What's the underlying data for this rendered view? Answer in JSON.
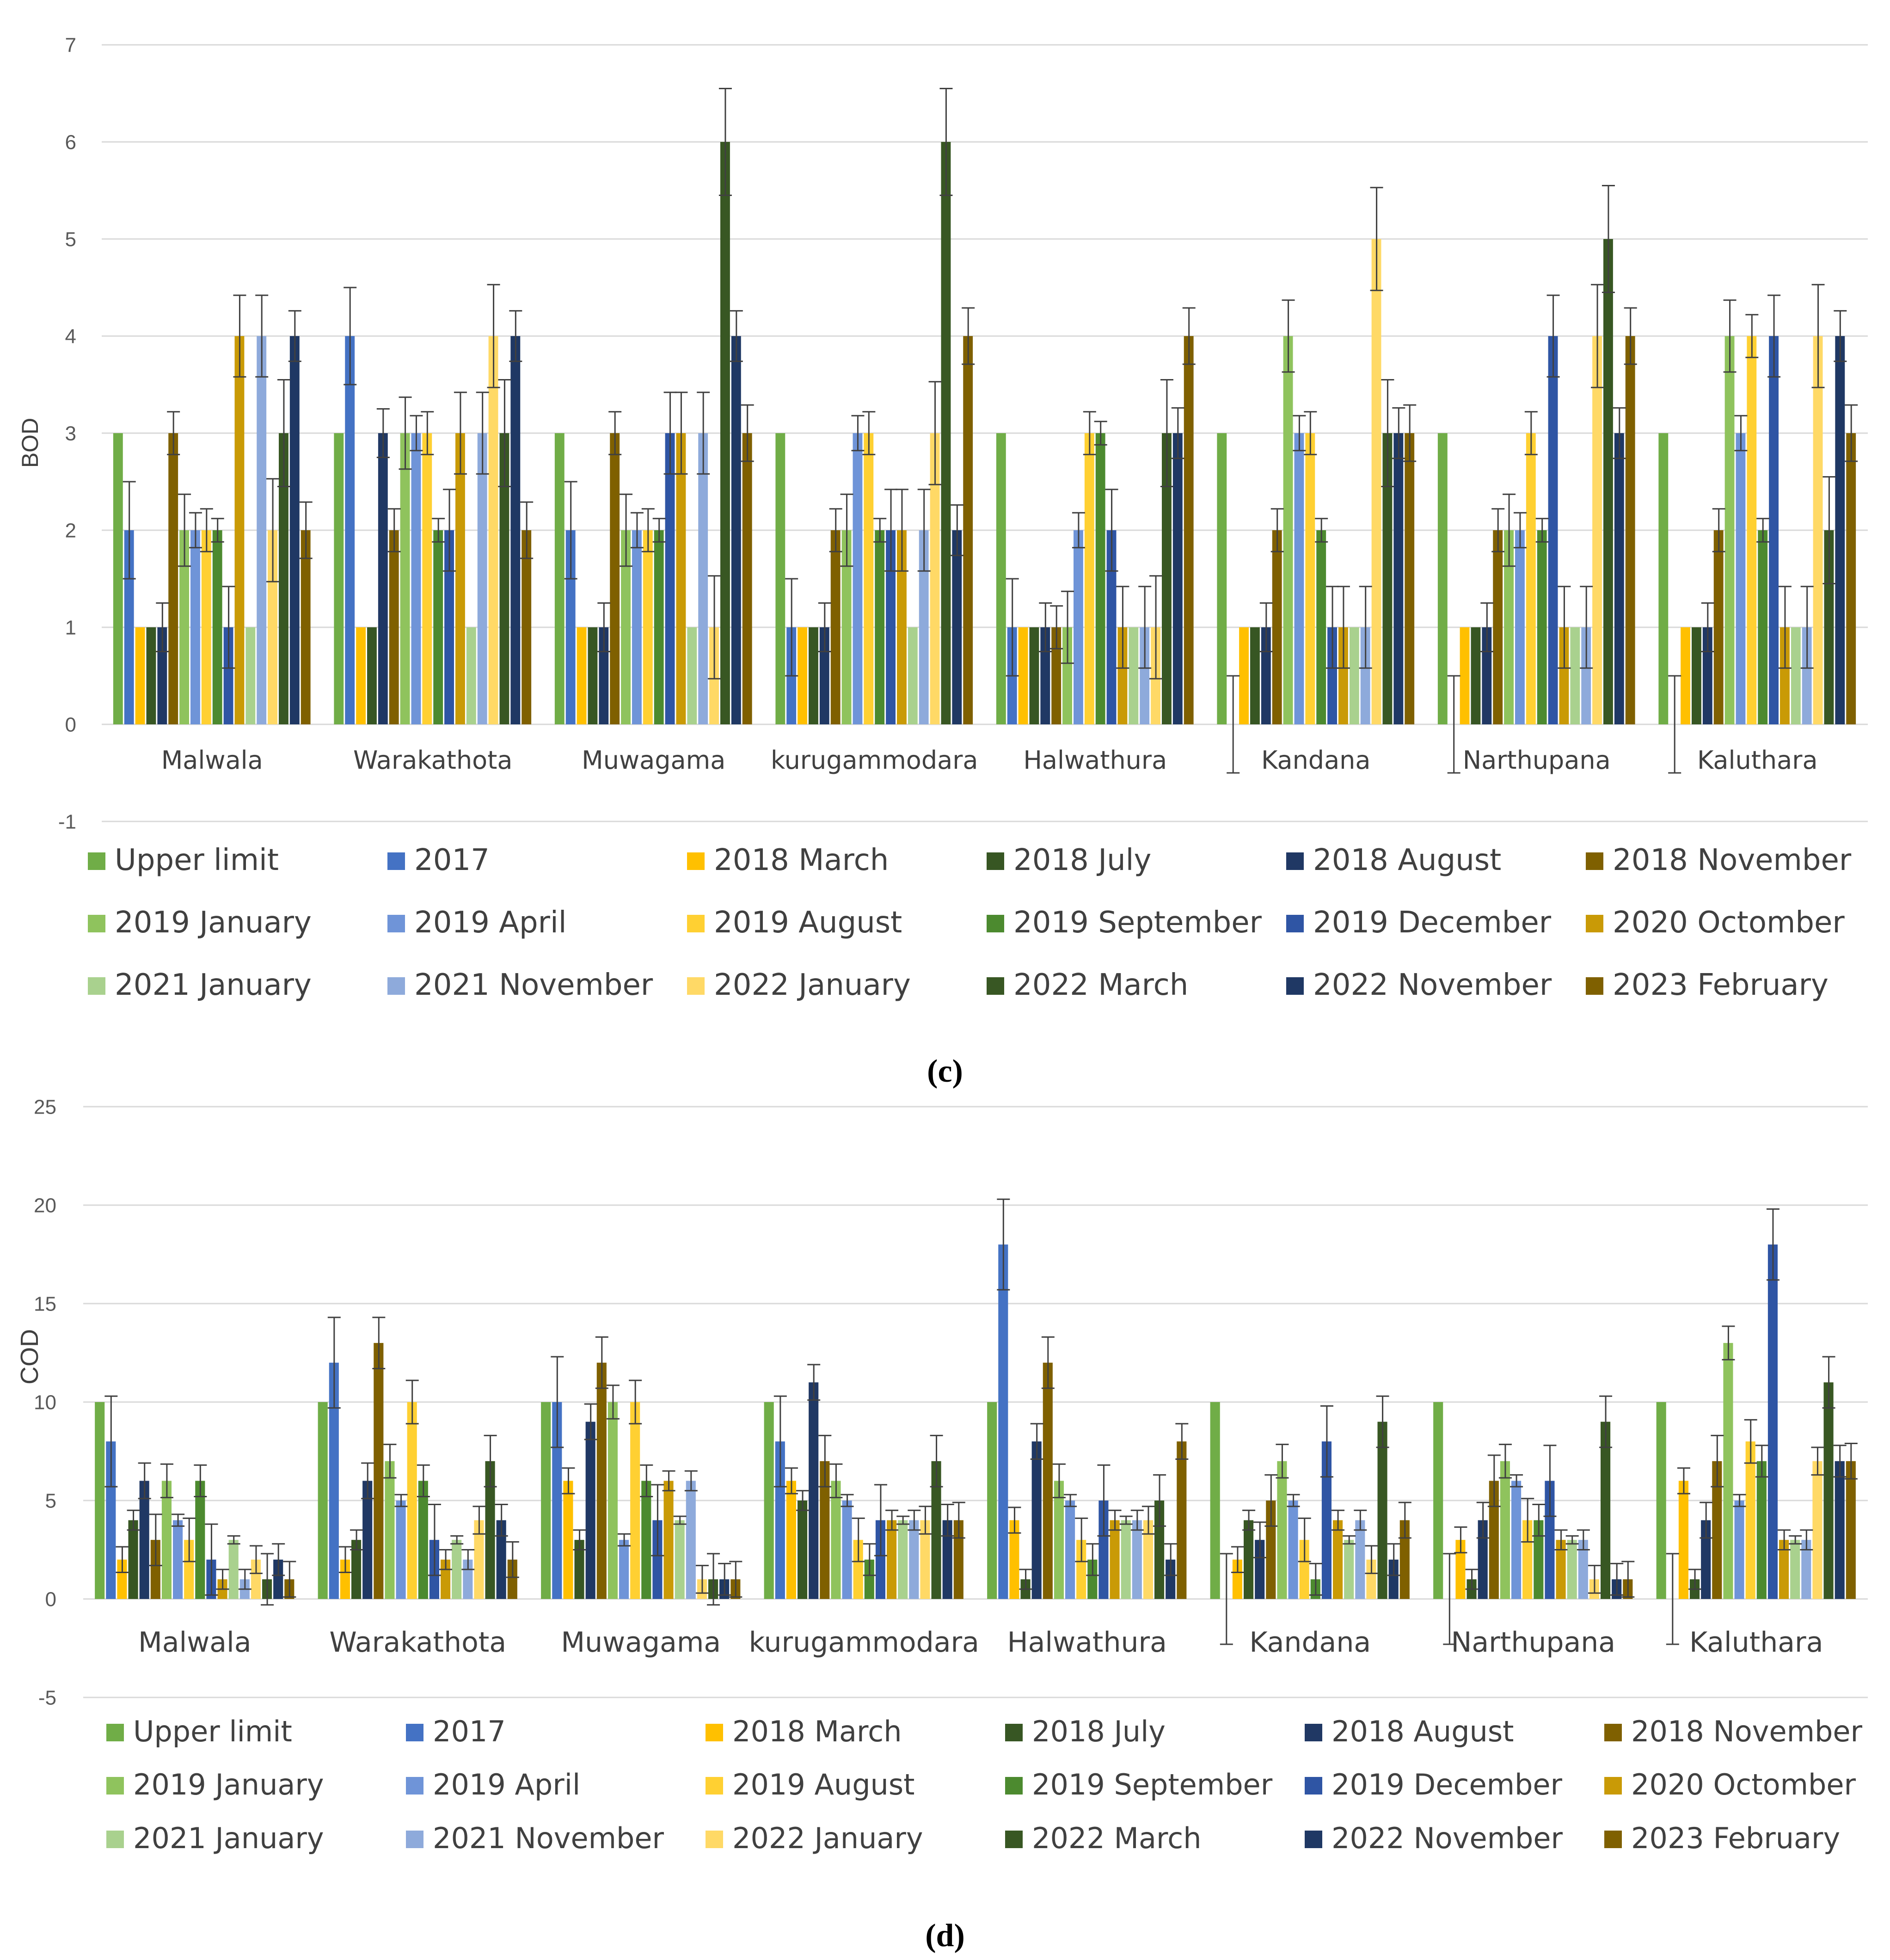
{
  "colors": {
    "series": [
      "#70ad47",
      "#4472c4",
      "#ffc000",
      "#375623",
      "#203864",
      "#7f6000",
      "#8fc35d",
      "#6f94d8",
      "#ffd032",
      "#4c8a2f",
      "#2f55a4",
      "#c99a06",
      "#a9d18e",
      "#8eaadb",
      "#ffd966",
      "#385723",
      "#1f3864",
      "#7f6000"
    ],
    "grid": "#d9d9d9",
    "error": "#404040"
  },
  "chart_data": [
    {
      "type": "bar",
      "title": "",
      "panel_label": "(c)",
      "xlabel": "",
      "ylabel": "BOD",
      "ylim": [
        -1,
        7
      ],
      "yticks": [
        -1,
        0,
        1,
        2,
        3,
        4,
        5,
        6,
        7
      ],
      "grid": true,
      "legend_position": "bottom",
      "categories": [
        "Malwala",
        "Warakathota",
        "Muwagama",
        "kurugammodara",
        "Halwathura",
        "Kandana",
        "Narthupana",
        "Kaluthara"
      ],
      "series": [
        {
          "name": "Upper limit",
          "values": [
            3,
            3,
            3,
            3,
            3,
            3,
            3,
            3
          ],
          "errors": [
            0,
            0,
            0,
            0,
            0,
            0,
            0,
            0
          ]
        },
        {
          "name": "2017",
          "values": [
            2,
            4,
            2,
            1,
            1,
            0,
            0,
            0
          ],
          "errors": [
            0.5,
            0.5,
            0.5,
            0.5,
            0.5,
            0.5,
            0.5,
            0.5
          ]
        },
        {
          "name": "2018 March",
          "values": [
            1,
            1,
            1,
            1,
            1,
            1,
            1,
            1
          ],
          "errors": [
            0,
            0,
            0,
            0,
            0,
            0,
            0,
            0
          ]
        },
        {
          "name": "2018 July",
          "values": [
            1,
            1,
            1,
            1,
            1,
            1,
            1,
            1
          ],
          "errors": [
            0,
            0,
            0,
            0,
            0,
            0,
            0,
            0
          ]
        },
        {
          "name": "2018 August",
          "values": [
            1,
            3,
            1,
            1,
            1,
            1,
            1,
            1
          ],
          "errors": [
            0.25,
            0.25,
            0.25,
            0.25,
            0.25,
            0.25,
            0.25,
            0.25
          ]
        },
        {
          "name": "2018 November",
          "values": [
            3,
            2,
            3,
            2,
            1,
            2,
            2,
            2
          ],
          "errors": [
            0.22,
            0.22,
            0.22,
            0.22,
            0.22,
            0.22,
            0.22,
            0.22
          ]
        },
        {
          "name": "2019 January",
          "values": [
            2,
            3,
            2,
            2,
            1,
            4,
            2,
            4
          ],
          "errors": [
            0.37,
            0.37,
            0.37,
            0.37,
            0.37,
            0.37,
            0.37,
            0.37
          ]
        },
        {
          "name": "2019 April",
          "values": [
            2,
            3,
            2,
            3,
            2,
            3,
            2,
            3
          ],
          "errors": [
            0.18,
            0.18,
            0.18,
            0.18,
            0.18,
            0.18,
            0.18,
            0.18
          ]
        },
        {
          "name": "2019 August",
          "values": [
            2,
            3,
            2,
            3,
            3,
            3,
            3,
            4
          ],
          "errors": [
            0.22,
            0.22,
            0.22,
            0.22,
            0.22,
            0.22,
            0.22,
            0.22
          ]
        },
        {
          "name": "2019 September",
          "values": [
            2,
            2,
            2,
            2,
            3,
            2,
            2,
            2
          ],
          "errors": [
            0.12,
            0.12,
            0.12,
            0.12,
            0.12,
            0.12,
            0.12,
            0.12
          ]
        },
        {
          "name": "2019 December",
          "values": [
            1,
            2,
            3,
            2,
            2,
            1,
            4,
            4
          ],
          "errors": [
            0.42,
            0.42,
            0.42,
            0.42,
            0.42,
            0.42,
            0.42,
            0.42
          ]
        },
        {
          "name": "2020 Octomber",
          "values": [
            4,
            3,
            3,
            2,
            1,
            1,
            1,
            1
          ],
          "errors": [
            0.42,
            0.42,
            0.42,
            0.42,
            0.42,
            0.42,
            0.42,
            0.42
          ]
        },
        {
          "name": "2021 January",
          "values": [
            1,
            1,
            1,
            1,
            1,
            1,
            1,
            1
          ],
          "errors": [
            0,
            0,
            0,
            0,
            0,
            0,
            0,
            0
          ]
        },
        {
          "name": "2021 November",
          "values": [
            4,
            3,
            3,
            2,
            1,
            1,
            1,
            1
          ],
          "errors": [
            0.42,
            0.42,
            0.42,
            0.42,
            0.42,
            0.42,
            0.42,
            0.42
          ]
        },
        {
          "name": "2022 January",
          "values": [
            2,
            4,
            1,
            3,
            1,
            5,
            4,
            4
          ],
          "errors": [
            0.53,
            0.53,
            0.53,
            0.53,
            0.53,
            0.53,
            0.53,
            0.53
          ]
        },
        {
          "name": "2022 March",
          "values": [
            3,
            3,
            6,
            6,
            3,
            3,
            5,
            2
          ],
          "errors": [
            0.55,
            0.55,
            0.55,
            0.55,
            0.55,
            0.55,
            0.55,
            0.55
          ]
        },
        {
          "name": "2022 November",
          "values": [
            4,
            4,
            4,
            2,
            3,
            3,
            3,
            4
          ],
          "errors": [
            0.26,
            0.26,
            0.26,
            0.26,
            0.26,
            0.26,
            0.26,
            0.26
          ]
        },
        {
          "name": "2023 February",
          "values": [
            2,
            2,
            3,
            4,
            4,
            3,
            4,
            3
          ],
          "errors": [
            0.29,
            0.29,
            0.29,
            0.29,
            0.29,
            0.29,
            0.29,
            0.29
          ]
        }
      ]
    },
    {
      "type": "bar",
      "title": "",
      "panel_label": "(d)",
      "xlabel": "",
      "ylabel": "COD",
      "ylim": [
        -5,
        25
      ],
      "yticks": [
        -5,
        0,
        5,
        10,
        15,
        20,
        25
      ],
      "grid": true,
      "legend_position": "bottom",
      "categories": [
        "Malwala",
        "Warakathota",
        "Muwagama",
        "kurugammodara",
        "Halwathura",
        "Kandana",
        "Narthupana",
        "Kaluthara"
      ],
      "series": [
        {
          "name": "Upper limit",
          "values": [
            10,
            10,
            10,
            10,
            10,
            10,
            10,
            10
          ],
          "errors": [
            0,
            0,
            0,
            0,
            0,
            0,
            0,
            0
          ]
        },
        {
          "name": "2017",
          "values": [
            8,
            12,
            10,
            8,
            18,
            0,
            0,
            0
          ],
          "errors": [
            2.3,
            2.3,
            2.3,
            2.3,
            2.3,
            2.3,
            2.3,
            2.3
          ]
        },
        {
          "name": "2018 March",
          "values": [
            2,
            2,
            6,
            6,
            4,
            2,
            3,
            6
          ],
          "errors": [
            0.65,
            0.65,
            0.65,
            0.65,
            0.65,
            0.65,
            0.65,
            0.65
          ]
        },
        {
          "name": "2018 July",
          "values": [
            4,
            3,
            3,
            5,
            1,
            4,
            1,
            1
          ],
          "errors": [
            0.5,
            0.5,
            0.5,
            0.5,
            0.5,
            0.5,
            0.5,
            0.5
          ]
        },
        {
          "name": "2018 August",
          "values": [
            6,
            6,
            9,
            11,
            8,
            3,
            4,
            4
          ],
          "errors": [
            0.9,
            0.9,
            0.9,
            0.9,
            0.9,
            0.9,
            0.9,
            0.9
          ]
        },
        {
          "name": "2018 November",
          "values": [
            3,
            13,
            12,
            7,
            12,
            5,
            6,
            7
          ],
          "errors": [
            1.3,
            1.3,
            1.3,
            1.3,
            1.3,
            1.3,
            1.3,
            1.3
          ]
        },
        {
          "name": "2019 January",
          "values": [
            6,
            7,
            10,
            6,
            6,
            7,
            7,
            13
          ],
          "errors": [
            0.85,
            0.85,
            0.85,
            0.85,
            0.85,
            0.85,
            0.85,
            0.85
          ]
        },
        {
          "name": "2019 April",
          "values": [
            4,
            5,
            3,
            5,
            5,
            5,
            6,
            5
          ],
          "errors": [
            0.3,
            0.3,
            0.3,
            0.3,
            0.3,
            0.3,
            0.3,
            0.3
          ]
        },
        {
          "name": "2019 August",
          "values": [
            3,
            10,
            10,
            3,
            3,
            3,
            4,
            8
          ],
          "errors": [
            1.1,
            1.1,
            1.1,
            1.1,
            1.1,
            1.1,
            1.1,
            1.1
          ]
        },
        {
          "name": "2019 September",
          "values": [
            6,
            6,
            6,
            2,
            2,
            1,
            4,
            7
          ],
          "errors": [
            0.8,
            0.8,
            0.8,
            0.8,
            0.8,
            0.8,
            0.8,
            0.8
          ]
        },
        {
          "name": "2019 December",
          "values": [
            2,
            3,
            4,
            4,
            5,
            8,
            6,
            18
          ],
          "errors": [
            1.8,
            1.8,
            1.8,
            1.8,
            1.8,
            1.8,
            1.8,
            1.8
          ]
        },
        {
          "name": "2020 Octomber",
          "values": [
            1,
            2,
            6,
            4,
            4,
            4,
            3,
            3
          ],
          "errors": [
            0.5,
            0.5,
            0.5,
            0.5,
            0.5,
            0.5,
            0.5,
            0.5
          ]
        },
        {
          "name": "2021 January",
          "values": [
            3,
            3,
            4,
            4,
            4,
            3,
            3,
            3
          ],
          "errors": [
            0.2,
            0.2,
            0.2,
            0.2,
            0.2,
            0.2,
            0.2,
            0.2
          ]
        },
        {
          "name": "2021 November",
          "values": [
            1,
            2,
            6,
            4,
            4,
            4,
            3,
            3
          ],
          "errors": [
            0.5,
            0.5,
            0.5,
            0.5,
            0.5,
            0.5,
            0.5,
            0.5
          ]
        },
        {
          "name": "2022 January",
          "values": [
            2,
            4,
            1,
            4,
            4,
            2,
            1,
            7
          ],
          "errors": [
            0.7,
            0.7,
            0.7,
            0.7,
            0.7,
            0.7,
            0.7,
            0.7
          ]
        },
        {
          "name": "2022 March",
          "values": [
            1,
            7,
            1,
            7,
            5,
            9,
            9,
            11
          ],
          "errors": [
            1.3,
            1.3,
            1.3,
            1.3,
            1.3,
            1.3,
            1.3,
            1.3
          ]
        },
        {
          "name": "2022 November",
          "values": [
            2,
            4,
            1,
            4,
            2,
            2,
            1,
            7
          ],
          "errors": [
            0.8,
            0.8,
            0.8,
            0.8,
            0.8,
            0.8,
            0.8,
            0.8
          ]
        },
        {
          "name": "2023 February",
          "values": [
            1,
            2,
            1,
            4,
            8,
            4,
            1,
            7
          ],
          "errors": [
            0.9,
            0.9,
            0.9,
            0.9,
            0.9,
            0.9,
            0.9,
            0.9
          ]
        }
      ]
    }
  ]
}
